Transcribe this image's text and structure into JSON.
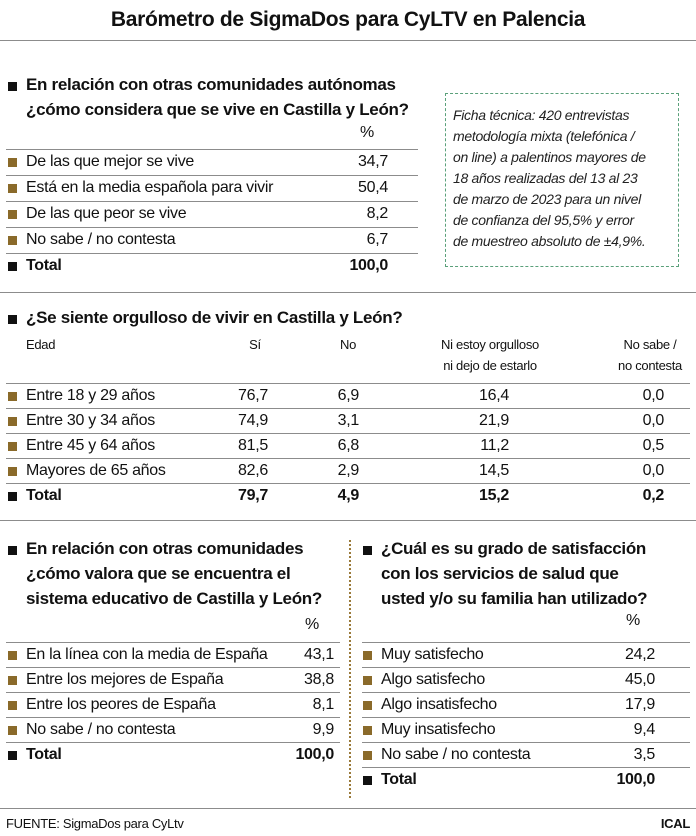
{
  "title": "Barómetro de SigmaDos para CyLTV en Palencia",
  "section1": {
    "question": [
      "En relación con otras comunidades autónomas",
      "¿cómo considera que se vive en Castilla y León?"
    ],
    "unit": "%",
    "rows": [
      [
        "De las que mejor se vive",
        "34,7"
      ],
      [
        "Está en la media española para vivir",
        "50,4"
      ],
      [
        "De las que peor se vive",
        "8,2"
      ],
      [
        "No sabe / no contesta",
        "6,7"
      ]
    ],
    "total": [
      "Total",
      "100,0"
    ]
  },
  "note": [
    "Ficha técnica: 420 entrevistas",
    "metodología mixta (telefónica /",
    "on line) a palentinos mayores de",
    "18 años realizadas del 13 al 23",
    "de marzo de 2023 para un nivel",
    "de confianza del 95,5% y error",
    "de muestreo absoluto de ±4,9%."
  ],
  "section2": {
    "question": "¿Se siente orgulloso de vivir en Castilla y León?",
    "headers": [
      [
        "Edad"
      ],
      [
        "Sí"
      ],
      [
        "No"
      ],
      [
        "Ni estoy orgulloso",
        "ni dejo de estarlo"
      ],
      [
        "No sabe /",
        "no contesta"
      ]
    ],
    "rows": [
      [
        "Entre 18 y 29 años",
        "76,7",
        "6,9",
        "16,4",
        "0,0"
      ],
      [
        "Entre 30 y 34 años",
        "74,9",
        "3,1",
        "21,9",
        "0,0"
      ],
      [
        "Entre 45 y 64 años",
        "81,5",
        "6,8",
        "11,2",
        "0,5"
      ],
      [
        "Mayores de 65 años",
        "82,6",
        "2,9",
        "14,5",
        "0,0"
      ]
    ],
    "total": [
      "Total",
      "79,7",
      "4,9",
      "15,2",
      "0,2"
    ]
  },
  "section3": {
    "question": [
      "En relación con otras comunidades",
      "¿cómo valora que se encuentra el",
      "sistema educativo de Castilla y León?"
    ],
    "unit": "%",
    "rows": [
      [
        "En la línea con la media de España",
        "43,1"
      ],
      [
        "Entre los mejores de España",
        "38,8"
      ],
      [
        "Entre los peores de España",
        "8,1"
      ],
      [
        "No sabe / no contesta",
        "9,9"
      ]
    ],
    "total": [
      "Total",
      "100,0"
    ]
  },
  "section4": {
    "question": [
      "¿Cuál es su grado de satisfacción",
      "con los servicios de salud que",
      "usted y/o su familia han utilizado?"
    ],
    "unit": "%",
    "rows": [
      [
        "Muy satisfecho",
        "24,2"
      ],
      [
        "Algo satisfecho",
        "45,0"
      ],
      [
        "Algo insatisfecho",
        "17,9"
      ],
      [
        "Muy insatisfecho",
        "9,4"
      ],
      [
        "No sabe / no contesta",
        "3,5"
      ]
    ],
    "total": [
      "Total",
      "100,0"
    ]
  },
  "footer": {
    "source": "FUENTE: SigmaDos para CyLtv",
    "brand": "ICAL"
  }
}
